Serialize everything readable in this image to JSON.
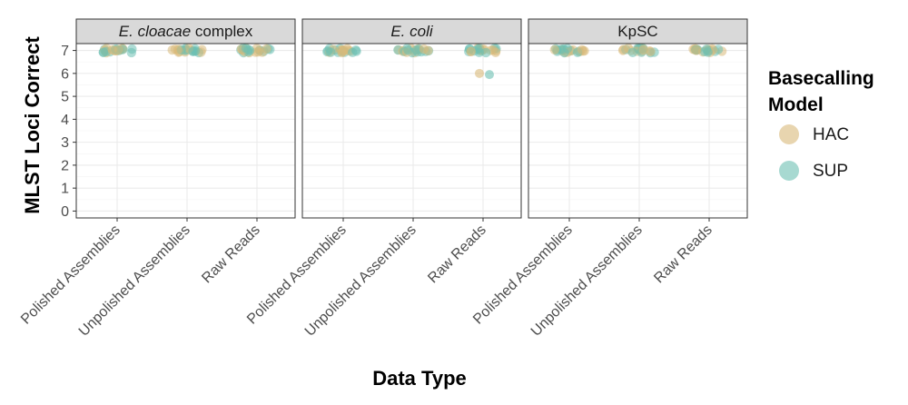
{
  "chart_data": {
    "type": "scatter",
    "ylabel": "MLST Loci Correct",
    "xlabel": "Data Type",
    "ylim": [
      0,
      7
    ],
    "y_ticks": [
      "0",
      "1",
      "2",
      "3",
      "4",
      "5",
      "6",
      "7"
    ],
    "categories": [
      "Polished Assemblies",
      "Unpolished Assemblies",
      "Raw Reads"
    ],
    "grid": true,
    "legend_position": "right",
    "legend": {
      "title_line1": "Basecalling",
      "title_line2": "Model"
    },
    "panels": [
      {
        "italic": "E. cloacae",
        "plain": " complex",
        "outliers": []
      },
      {
        "italic": "E. coli",
        "plain": "",
        "outliers": [
          {
            "category": "Raw Reads",
            "series": "HAC",
            "y": 6
          },
          {
            "category": "Raw Reads",
            "series": "SUP",
            "y": 5.95
          }
        ]
      },
      {
        "italic": "",
        "plain": "KpSC",
        "outliers": []
      }
    ],
    "series": [
      {
        "name": "HAC",
        "color": "#d8b97a",
        "majority_value": 7
      },
      {
        "name": "SUP",
        "color": "#6cc0b3",
        "majority_value": 7
      }
    ]
  }
}
